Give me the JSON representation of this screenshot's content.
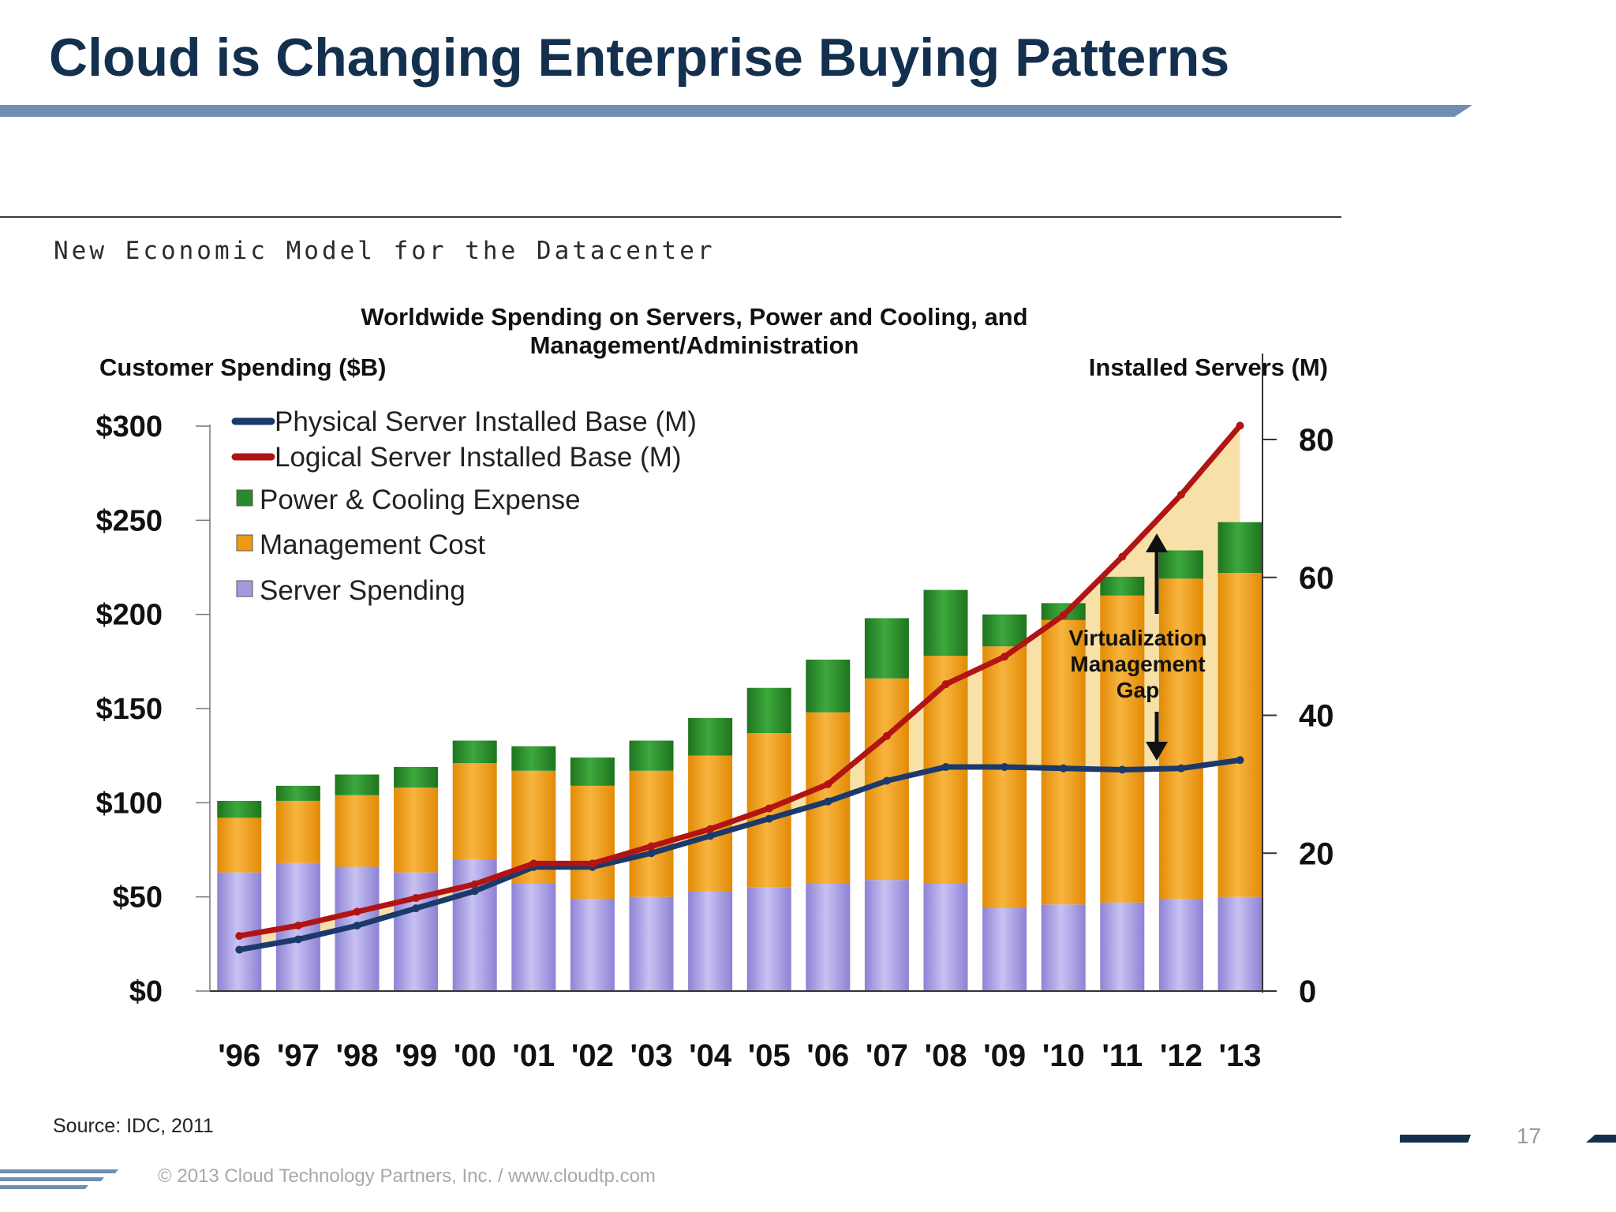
{
  "slide": {
    "title": "Cloud is Changing Enterprise Buying Patterns",
    "embed_header": "New Economic Model for the Datacenter",
    "source": "Source: IDC, 2011",
    "copyright": "© 2013 Cloud Technology Partners, Inc.  /  www.cloudtp.com",
    "page_number": "17"
  },
  "colors": {
    "title": "#14304f",
    "rule": "#6f8fb0",
    "server": "#a39ae0",
    "management": "#ef9a12",
    "power": "#2b8a2b",
    "physical_line": "#1b3a6b",
    "logical_line": "#b21414",
    "gap_fill": "#f7dc9a"
  },
  "chart_data": {
    "type": "bar",
    "stacked": true,
    "title": "Worldwide Spending on Servers, Power and Cooling, and Management/Administration",
    "y_left_label": "Customer Spending ($B)",
    "y_right_label": "Installed Servers (M)",
    "categories": [
      "'96",
      "'97",
      "'98",
      "'99",
      "'00",
      "'01",
      "'02",
      "'03",
      "'04",
      "'05",
      "'06",
      "'07",
      "'08",
      "'09",
      "'10",
      "'11",
      "'12",
      "'13"
    ],
    "y_left_ticks": [
      "$0",
      "$50",
      "$100",
      "$150",
      "$200",
      "$250",
      "$300"
    ],
    "y_left_range": [
      0,
      300
    ],
    "y_right_ticks": [
      "0",
      "20",
      "40",
      "60",
      "80"
    ],
    "y_right_range": [
      0,
      85
    ],
    "series": [
      {
        "name": "Server Spending",
        "axis": "left",
        "color": "#a39ae0",
        "values": [
          63,
          68,
          66,
          63,
          70,
          57,
          49,
          50,
          53,
          55,
          57,
          59,
          57,
          44,
          46,
          47,
          49,
          50
        ]
      },
      {
        "name": "Management Cost",
        "axis": "left",
        "color": "#ef9a12",
        "values": [
          29,
          33,
          38,
          45,
          51,
          60,
          60,
          67,
          72,
          82,
          91,
          107,
          121,
          139,
          151,
          163,
          170,
          172
        ]
      },
      {
        "name": "Power & Cooling Expense",
        "axis": "left",
        "color": "#2b8a2b",
        "values": [
          9,
          8,
          11,
          11,
          12,
          13,
          15,
          16,
          20,
          24,
          28,
          32,
          35,
          17,
          9,
          10,
          15,
          27
        ]
      },
      {
        "name": "Physical Server Installed Base (M)",
        "axis": "right",
        "color": "#1b3a6b",
        "values": [
          6,
          7.5,
          9.5,
          12,
          14.5,
          18,
          18,
          20,
          22.5,
          25,
          27.5,
          30.5,
          32.5,
          32.5,
          32.3,
          32.1,
          32.3,
          33.5
        ]
      },
      {
        "name": "Logical Server Installed Base (M)",
        "axis": "right",
        "color": "#b21414",
        "values": [
          8,
          9.5,
          11.5,
          13.5,
          15.5,
          18.5,
          18.5,
          21,
          23.5,
          26.5,
          30,
          37,
          44.5,
          48.5,
          54.5,
          63,
          72,
          82
        ]
      }
    ],
    "legend": [
      "Physical Server Installed Base (M)",
      "Logical Server Installed Base (M)",
      "Power & Cooling Expense",
      "Management Cost",
      "Server Spending"
    ],
    "legend_position": "top-left",
    "annotation": {
      "lines": [
        "Virtualization",
        "Management",
        "Gap"
      ]
    }
  }
}
